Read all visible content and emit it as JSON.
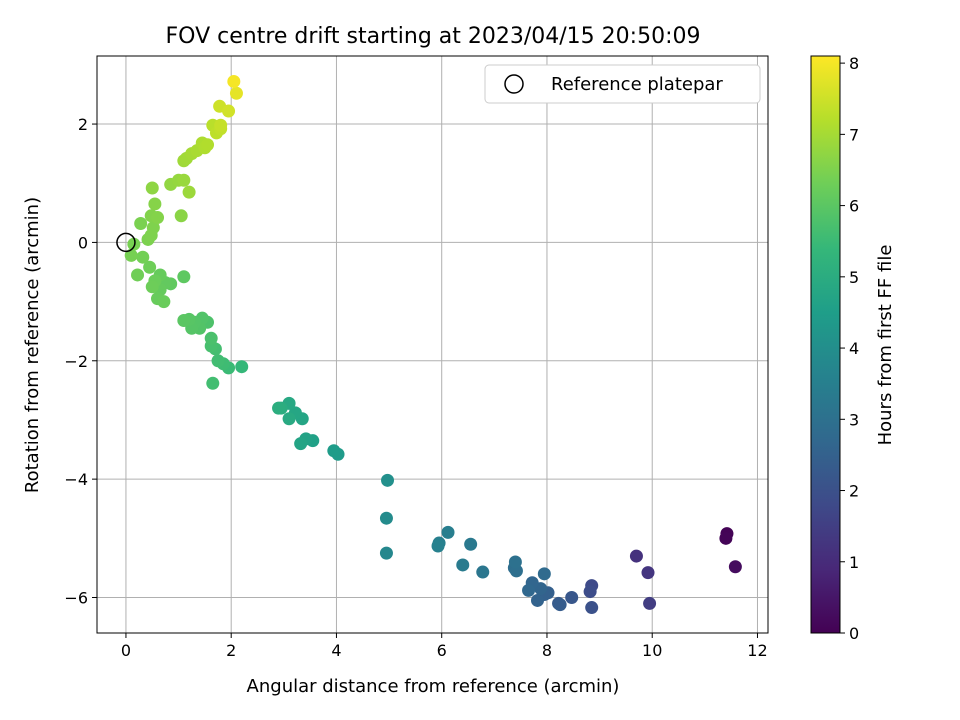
{
  "chart_data": {
    "type": "scatter",
    "title": "FOV centre drift starting at 2023/04/15 20:50:09",
    "xlabel": "Angular distance from reference (arcmin)",
    "ylabel": "Rotation from reference (arcmin)",
    "xlim": [
      -0.55,
      12.2
    ],
    "ylim": [
      -6.6,
      3.15
    ],
    "xticks": [
      0,
      2,
      4,
      6,
      8,
      10,
      12
    ],
    "yticks": [
      -6,
      -4,
      -2,
      0,
      2
    ],
    "grid": true,
    "legend_position": "top-right",
    "legend": {
      "label": "Reference platepar"
    },
    "reference_point": {
      "x": 0,
      "y": 0
    },
    "colorbar": {
      "label": "Hours from first FF file",
      "range": [
        0,
        8.1
      ],
      "ticks": [
        0,
        1,
        2,
        3,
        4,
        5,
        6,
        7,
        8
      ],
      "colormap": "viridis",
      "stops": [
        "#440154",
        "#482878",
        "#3e4a89",
        "#31688e",
        "#26828e",
        "#1f9e89",
        "#35b779",
        "#6ece58",
        "#b5de2b",
        "#fde725"
      ]
    },
    "series": [
      {
        "points": [
          [
            11.42,
            -4.92,
            0.05
          ],
          [
            11.4,
            -5.0,
            0.08
          ],
          [
            11.58,
            -5.48,
            0.25
          ],
          [
            9.7,
            -5.3,
            1.15
          ],
          [
            9.92,
            -5.58,
            1.25
          ],
          [
            9.95,
            -6.1,
            1.45
          ],
          [
            8.85,
            -5.8,
            1.8
          ],
          [
            8.82,
            -5.9,
            1.9
          ],
          [
            8.85,
            -6.17,
            2.0
          ],
          [
            8.47,
            -6.0,
            2.2
          ],
          [
            8.22,
            -6.1,
            2.3
          ],
          [
            8.25,
            -6.12,
            2.35
          ],
          [
            8.02,
            -5.92,
            2.45
          ],
          [
            7.95,
            -5.95,
            2.5
          ],
          [
            7.82,
            -6.05,
            2.55
          ],
          [
            7.88,
            -5.85,
            2.6
          ],
          [
            7.72,
            -5.75,
            2.65
          ],
          [
            7.65,
            -5.88,
            2.7
          ],
          [
            7.95,
            -5.6,
            2.8
          ],
          [
            7.38,
            -5.5,
            2.9
          ],
          [
            7.42,
            -5.55,
            2.95
          ],
          [
            7.4,
            -5.4,
            3.0
          ],
          [
            6.78,
            -5.57,
            3.2
          ],
          [
            6.55,
            -5.1,
            3.3
          ],
          [
            6.4,
            -5.45,
            3.35
          ],
          [
            6.12,
            -4.9,
            3.45
          ],
          [
            5.95,
            -5.08,
            3.5
          ],
          [
            5.93,
            -5.13,
            3.55
          ],
          [
            4.95,
            -5.25,
            3.75
          ],
          [
            4.95,
            -4.66,
            3.9
          ],
          [
            4.97,
            -4.02,
            4.05
          ],
          [
            4.03,
            -3.58,
            4.4
          ],
          [
            3.95,
            -3.52,
            4.45
          ],
          [
            3.55,
            -3.35,
            4.6
          ],
          [
            3.42,
            -3.32,
            4.65
          ],
          [
            3.32,
            -3.4,
            4.7
          ],
          [
            3.35,
            -2.98,
            4.75
          ],
          [
            3.22,
            -2.88,
            4.8
          ],
          [
            3.1,
            -2.72,
            4.85
          ],
          [
            3.1,
            -2.98,
            4.9
          ],
          [
            2.95,
            -2.8,
            5.0
          ],
          [
            2.9,
            -2.8,
            5.05
          ],
          [
            2.2,
            -2.1,
            5.4
          ],
          [
            1.95,
            -2.12,
            5.5
          ],
          [
            1.85,
            -2.05,
            5.55
          ],
          [
            1.75,
            -2.0,
            5.6
          ],
          [
            1.65,
            -2.38,
            5.62
          ],
          [
            1.7,
            -1.8,
            5.65
          ],
          [
            1.62,
            -1.75,
            5.7
          ],
          [
            1.62,
            -1.62,
            5.75
          ],
          [
            1.55,
            -1.35,
            5.8
          ],
          [
            1.45,
            -1.28,
            5.85
          ],
          [
            1.4,
            -1.45,
            5.88
          ],
          [
            1.3,
            -1.35,
            5.9
          ],
          [
            1.25,
            -1.45,
            5.92
          ],
          [
            1.2,
            -1.3,
            5.95
          ],
          [
            1.1,
            -1.32,
            6.0
          ],
          [
            1.1,
            -0.58,
            6.05
          ],
          [
            0.85,
            -0.7,
            6.1
          ],
          [
            0.75,
            -0.68,
            6.12
          ],
          [
            0.65,
            -0.8,
            6.15
          ],
          [
            0.65,
            -0.55,
            6.18
          ],
          [
            0.6,
            -0.95,
            6.2
          ],
          [
            0.72,
            -1.0,
            6.22
          ],
          [
            0.55,
            -0.65,
            6.25
          ],
          [
            0.5,
            -0.75,
            6.28
          ],
          [
            0.45,
            -0.42,
            6.3
          ],
          [
            0.22,
            -0.55,
            6.32
          ],
          [
            0.32,
            -0.25,
            6.35
          ],
          [
            0.1,
            -0.22,
            6.4
          ],
          [
            0.15,
            -0.03,
            6.42
          ],
          [
            0.28,
            0.32,
            6.45
          ],
          [
            0.42,
            0.05,
            6.48
          ],
          [
            0.48,
            0.12,
            6.5
          ],
          [
            0.52,
            0.25,
            6.52
          ],
          [
            0.48,
            0.45,
            6.55
          ],
          [
            0.6,
            0.42,
            6.58
          ],
          [
            0.55,
            0.65,
            6.6
          ],
          [
            1.05,
            0.45,
            6.65
          ],
          [
            0.5,
            0.92,
            6.7
          ],
          [
            0.85,
            0.98,
            6.75
          ],
          [
            1.0,
            1.05,
            6.8
          ],
          [
            1.1,
            1.05,
            6.85
          ],
          [
            1.2,
            0.85,
            6.88
          ],
          [
            1.1,
            1.38,
            6.92
          ],
          [
            1.15,
            1.42,
            6.95
          ],
          [
            1.25,
            1.5,
            7.0
          ],
          [
            1.35,
            1.55,
            7.05
          ],
          [
            1.45,
            1.68,
            7.1
          ],
          [
            1.5,
            1.6,
            7.12
          ],
          [
            1.55,
            1.65,
            7.15
          ],
          [
            1.65,
            1.98,
            7.25
          ],
          [
            1.72,
            1.85,
            7.3
          ],
          [
            1.8,
            1.92,
            7.35
          ],
          [
            1.8,
            1.98,
            7.4
          ],
          [
            1.78,
            2.3,
            7.5
          ],
          [
            1.95,
            2.22,
            7.55
          ],
          [
            2.1,
            2.52,
            7.8
          ],
          [
            2.05,
            2.72,
            8.0
          ]
        ]
      }
    ]
  }
}
